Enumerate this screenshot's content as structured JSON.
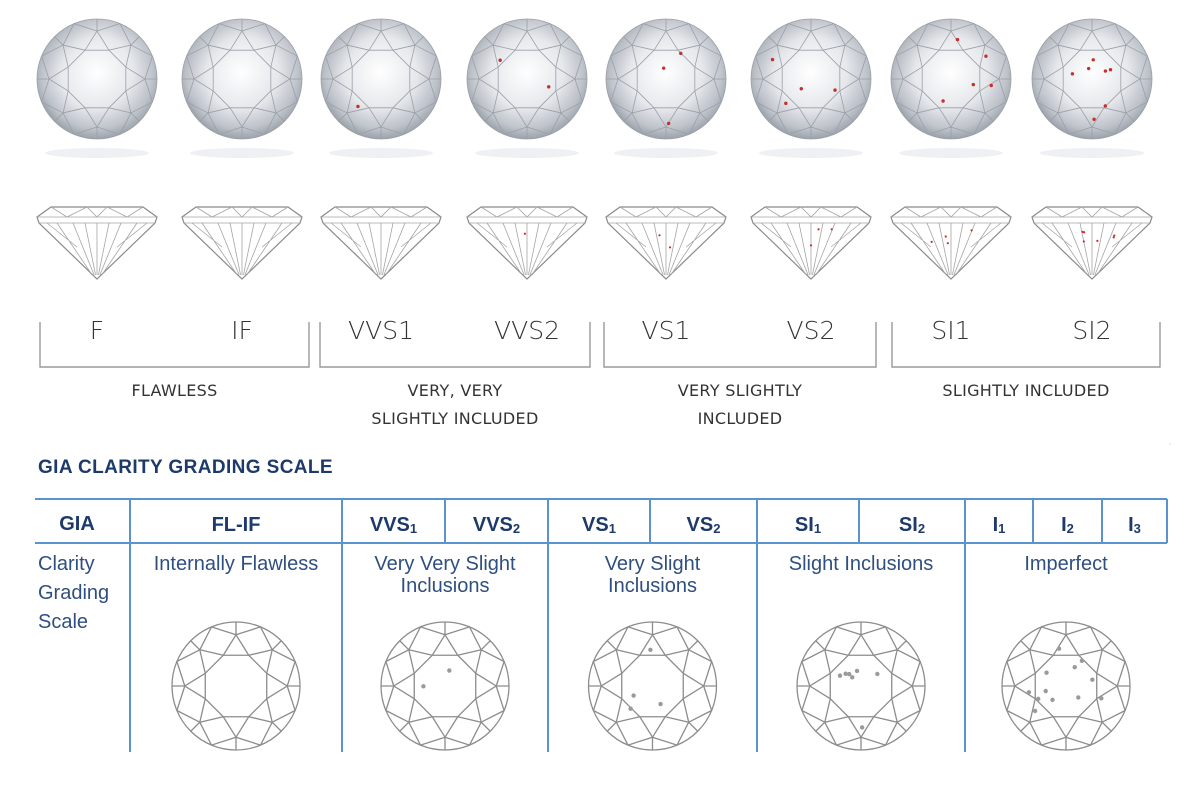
{
  "top_grades": [
    {
      "label": "F",
      "inclusions": 0
    },
    {
      "label": "IF",
      "inclusions": 0
    },
    {
      "label": "VVS1",
      "inclusions": 1
    },
    {
      "label": "VVS2",
      "inclusions": 2
    },
    {
      "label": "VS1",
      "inclusions": 3
    },
    {
      "label": "VS2",
      "inclusions": 4
    },
    {
      "label": "SI1",
      "inclusions": 5
    },
    {
      "label": "SI2",
      "inclusions": 7
    }
  ],
  "top_groups": [
    {
      "lines": [
        "FLAWLESS"
      ]
    },
    {
      "lines": [
        "VERY, VERY",
        "SLIGHTLY INCLUDED"
      ]
    },
    {
      "lines": [
        "VERY SLIGHTLY",
        "INCLUDED"
      ]
    },
    {
      "lines": [
        "SLIGHTLY INCLUDED"
      ]
    }
  ],
  "scale": {
    "title": "GIA CLARITY GRADING SCALE",
    "row_header": "GIA",
    "row_label_lines": [
      "Clarity",
      "Grading",
      "Scale"
    ],
    "columns": [
      {
        "grades": [
          {
            "base": "FL-IF",
            "sub": ""
          }
        ],
        "desc_lines": [
          "Internally Flawless"
        ],
        "inclusions": 0
      },
      {
        "grades": [
          {
            "base": "VVS",
            "sub": "1"
          },
          {
            "base": "VVS",
            "sub": "2"
          }
        ],
        "desc_lines": [
          "Very Very Slight",
          "Inclusions"
        ],
        "inclusions": 2
      },
      {
        "grades": [
          {
            "base": "VS",
            "sub": "1"
          },
          {
            "base": "VS",
            "sub": "2"
          }
        ],
        "desc_lines": [
          "Very Slight",
          "Inclusions"
        ],
        "inclusions": 4
      },
      {
        "grades": [
          {
            "base": "SI",
            "sub": "1"
          },
          {
            "base": "SI",
            "sub": "2"
          }
        ],
        "desc_lines": [
          "Slight Inclusions"
        ],
        "inclusions": 7
      },
      {
        "grades": [
          {
            "base": "I",
            "sub": "1"
          },
          {
            "base": "I",
            "sub": "2"
          },
          {
            "base": "I",
            "sub": "3"
          }
        ],
        "desc_lines": [
          "Imperfect"
        ],
        "inclusions": 12
      }
    ]
  },
  "colors": {
    "accent_blue": "#5b93cf",
    "title_navy": "#1e3a6b",
    "text_blue": "#2f4f80",
    "inclusion_red": "#c4302b",
    "outline_gray": "#8a8a8a"
  }
}
